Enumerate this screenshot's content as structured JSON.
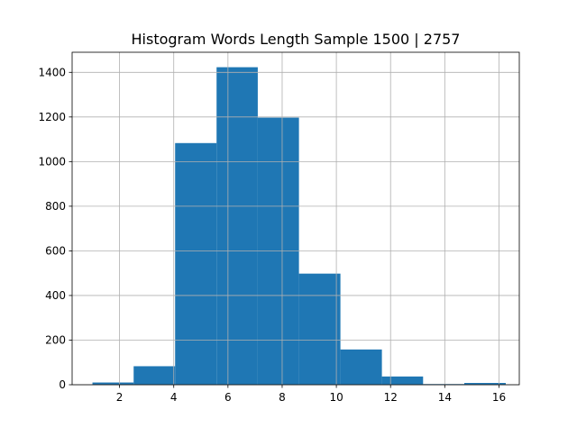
{
  "chart_data": {
    "type": "bar",
    "title": "Histogram Words Length Sample 1500 | 2757",
    "xlabel": "",
    "ylabel": "",
    "xlim": [
      0.25,
      16.75
    ],
    "ylim": [
      0,
      1490
    ],
    "grid": true,
    "bar_color": "#1f77b4",
    "bins": [
      {
        "x0": 1.0,
        "x1": 2.52,
        "count": 10
      },
      {
        "x0": 2.52,
        "x1": 4.05,
        "count": 83
      },
      {
        "x0": 4.05,
        "x1": 5.58,
        "count": 1083
      },
      {
        "x0": 5.58,
        "x1": 7.1,
        "count": 1423
      },
      {
        "x0": 7.1,
        "x1": 8.62,
        "count": 1197
      },
      {
        "x0": 8.62,
        "x1": 10.15,
        "count": 498
      },
      {
        "x0": 10.15,
        "x1": 11.68,
        "count": 158
      },
      {
        "x0": 11.68,
        "x1": 13.2,
        "count": 37
      },
      {
        "x0": 13.2,
        "x1": 14.72,
        "count": 3
      },
      {
        "x0": 14.72,
        "x1": 16.25,
        "count": 8
      }
    ],
    "xticks": [
      2,
      4,
      6,
      8,
      10,
      12,
      14,
      16
    ],
    "yticks": [
      0,
      200,
      400,
      600,
      800,
      1000,
      1200,
      1400
    ]
  }
}
